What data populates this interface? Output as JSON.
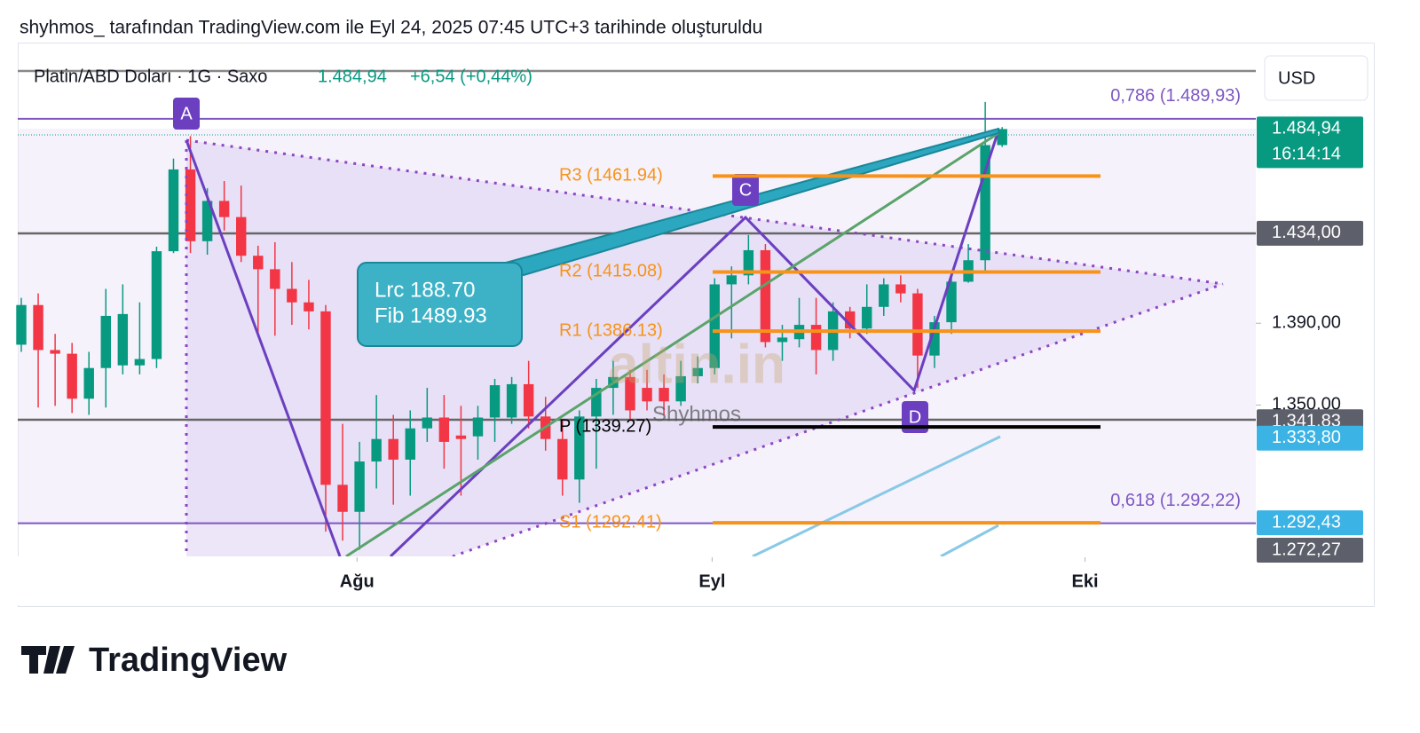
{
  "header": "shyhmos_ tarafından TradingView.com ile Eyl 24, 2025 07:45 UTC+3 tarihinde oluşturuldu",
  "footer_logo": "TradingView",
  "chart_data": {
    "type": "candlestick",
    "symbol": "Platin/ABD Doları · 1G · Saxo",
    "last": "1.484,94",
    "change": "+6,54 (+0,44%)",
    "currency": "USD",
    "up_color": "#089981",
    "down_color": "#f23645",
    "ohlc": [
      [
        1379.5,
        1402.4,
        1376.0,
        1398.9
      ],
      [
        1398.9,
        1404.6,
        1348.8,
        1376.9
      ],
      [
        1376.9,
        1384.8,
        1349.6,
        1375.1
      ],
      [
        1375.1,
        1380.4,
        1346.1,
        1353.1
      ],
      [
        1353.1,
        1376.0,
        1345.2,
        1368.1
      ],
      [
        1368.1,
        1406.8,
        1348.8,
        1393.6
      ],
      [
        1369.4,
        1409.0,
        1365.0,
        1394.5
      ],
      [
        1369.4,
        1400.2,
        1365.0,
        1372.5
      ],
      [
        1372.5,
        1427.4,
        1368.1,
        1425.2
      ],
      [
        1425.2,
        1470.5,
        1424.3,
        1465.2
      ],
      [
        1465.2,
        1481.5,
        1424.3,
        1430.1
      ],
      [
        1430.1,
        1456.0,
        1423.5,
        1449.8
      ],
      [
        1449.8,
        1459.5,
        1435.3,
        1441.9
      ],
      [
        1441.9,
        1457.3,
        1419.9,
        1423.0
      ],
      [
        1423.0,
        1427.9,
        1384.8,
        1416.4
      ],
      [
        1416.4,
        1429.6,
        1383.9,
        1406.8
      ],
      [
        1406.8,
        1419.9,
        1389.2,
        1400.2
      ],
      [
        1400.2,
        1411.2,
        1387.0,
        1395.8
      ],
      [
        1395.8,
        1398.9,
        1288.1,
        1311.0
      ],
      [
        1311.0,
        1340.8,
        1283.7,
        1297.8
      ],
      [
        1297.8,
        1332.0,
        1279.3,
        1322.4
      ],
      [
        1322.4,
        1354.9,
        1309.2,
        1333.4
      ],
      [
        1333.4,
        1345.2,
        1301.3,
        1323.3
      ],
      [
        1323.3,
        1347.4,
        1305.7,
        1338.6
      ],
      [
        1338.6,
        1358.4,
        1332.0,
        1343.9
      ],
      [
        1343.9,
        1354.9,
        1318.9,
        1332.0
      ],
      [
        1335.1,
        1349.6,
        1305.7,
        1333.4
      ],
      [
        1334.7,
        1349.6,
        1323.3,
        1343.9
      ],
      [
        1343.9,
        1362.8,
        1332.0,
        1359.7
      ],
      [
        1343.9,
        1363.7,
        1340.8,
        1360.2
      ],
      [
        1360.2,
        1371.6,
        1338.6,
        1344.4
      ],
      [
        1344.4,
        1354.0,
        1327.7,
        1333.4
      ],
      [
        1333.4,
        1343.0,
        1305.7,
        1313.6
      ],
      [
        1313.6,
        1347.4,
        1302.2,
        1344.4
      ],
      [
        1344.4,
        1362.8,
        1318.9,
        1358.4
      ],
      [
        1358.4,
        1371.6,
        1345.2,
        1363.7
      ],
      [
        1363.7,
        1367.2,
        1343.0,
        1347.4
      ],
      [
        1358.4,
        1367.2,
        1347.4,
        1351.8
      ],
      [
        1358.4,
        1365.0,
        1345.2,
        1351.8
      ],
      [
        1351.8,
        1371.6,
        1349.6,
        1364.1
      ],
      [
        1364.1,
        1373.8,
        1360.6,
        1368.1
      ],
      [
        1368.1,
        1412.0,
        1365.0,
        1409.0
      ],
      [
        1409.0,
        1417.8,
        1382.6,
        1413.4
      ],
      [
        1413.4,
        1433.1,
        1409.0,
        1425.7
      ],
      [
        1425.7,
        1428.7,
        1378.2,
        1380.8
      ],
      [
        1380.8,
        1389.2,
        1371.6,
        1383.0
      ],
      [
        1382.2,
        1402.4,
        1378.2,
        1389.2
      ],
      [
        1389.2,
        1402.4,
        1365.0,
        1376.9
      ],
      [
        1376.9,
        1400.2,
        1371.6,
        1395.8
      ],
      [
        1395.8,
        1398.0,
        1382.6,
        1387.4
      ],
      [
        1387.4,
        1409.0,
        1384.8,
        1398.0
      ],
      [
        1398.0,
        1412.0,
        1393.6,
        1409.0
      ],
      [
        1409.0,
        1413.4,
        1400.2,
        1404.6
      ],
      [
        1404.6,
        1406.8,
        1358.4,
        1374.2
      ],
      [
        1374.2,
        1393.6,
        1368.1,
        1390.5
      ],
      [
        1390.5,
        1413.4,
        1384.8,
        1410.3
      ],
      [
        1410.3,
        1428.7,
        1409.8,
        1420.8
      ],
      [
        1420.8,
        1498.2,
        1415.6,
        1477.1
      ],
      [
        1477.1,
        1485.9,
        1476.2,
        1484.94
      ]
    ],
    "xlim": [
      -0.21,
      73.0
    ],
    "xticks": [
      {
        "value": 19.85,
        "label": "Ağu"
      },
      {
        "value": 40.85,
        "label": "Eyl"
      },
      {
        "value": 62.9,
        "label": "Eki"
      }
    ],
    "ylim": [
      1276,
      1522
    ],
    "yticks": [
      {
        "value": 1390,
        "label": "1.390,00"
      },
      {
        "value": 1350,
        "label": "1.350,00"
      }
    ],
    "price_tags": [
      {
        "value": 1484.94,
        "label": "1.484,94",
        "sub": "16:14:14",
        "color": "#089981"
      },
      {
        "value": 1434,
        "label": "1.434,00",
        "color": "#5d606b"
      },
      {
        "value": 1341.83,
        "label": "1.341,83",
        "color": "#5d606b"
      },
      {
        "value": 1333.8,
        "label": "1.333,80",
        "color": "#3bb3e4"
      },
      {
        "value": 1292.43,
        "label": "1.292,43",
        "color": "#3bb3e4"
      },
      {
        "value": 1272.27,
        "label": "1.272,27",
        "color": "#5d606b"
      }
    ],
    "pivots": [
      {
        "value": 1461.94,
        "label": "R3 (1461.94)",
        "color": "#f7931a"
      },
      {
        "value": 1415.08,
        "label": "R2 (1415.08)",
        "color": "#f7931a"
      },
      {
        "value": 1386.13,
        "label": "R1 (1386.13)",
        "color": "#f7931a"
      },
      {
        "value": 1339.27,
        "label": "P (1339.27)",
        "color": "#000000"
      },
      {
        "value": 1292.41,
        "label": "S1 (1292.41)",
        "color": "#f7931a"
      }
    ],
    "fib_levels": [
      {
        "value": 1489.93,
        "label": "0,786 (1.489,93)"
      },
      {
        "value": 1292.22,
        "label": "0,618 (1.292,22)"
      }
    ],
    "pattern_points": [
      "A",
      "C",
      "D"
    ],
    "annotation": [
      "Lrc 188.70",
      "Fib 1489.93"
    ],
    "watermark": [
      "altin.in",
      "Shyhmos"
    ]
  }
}
